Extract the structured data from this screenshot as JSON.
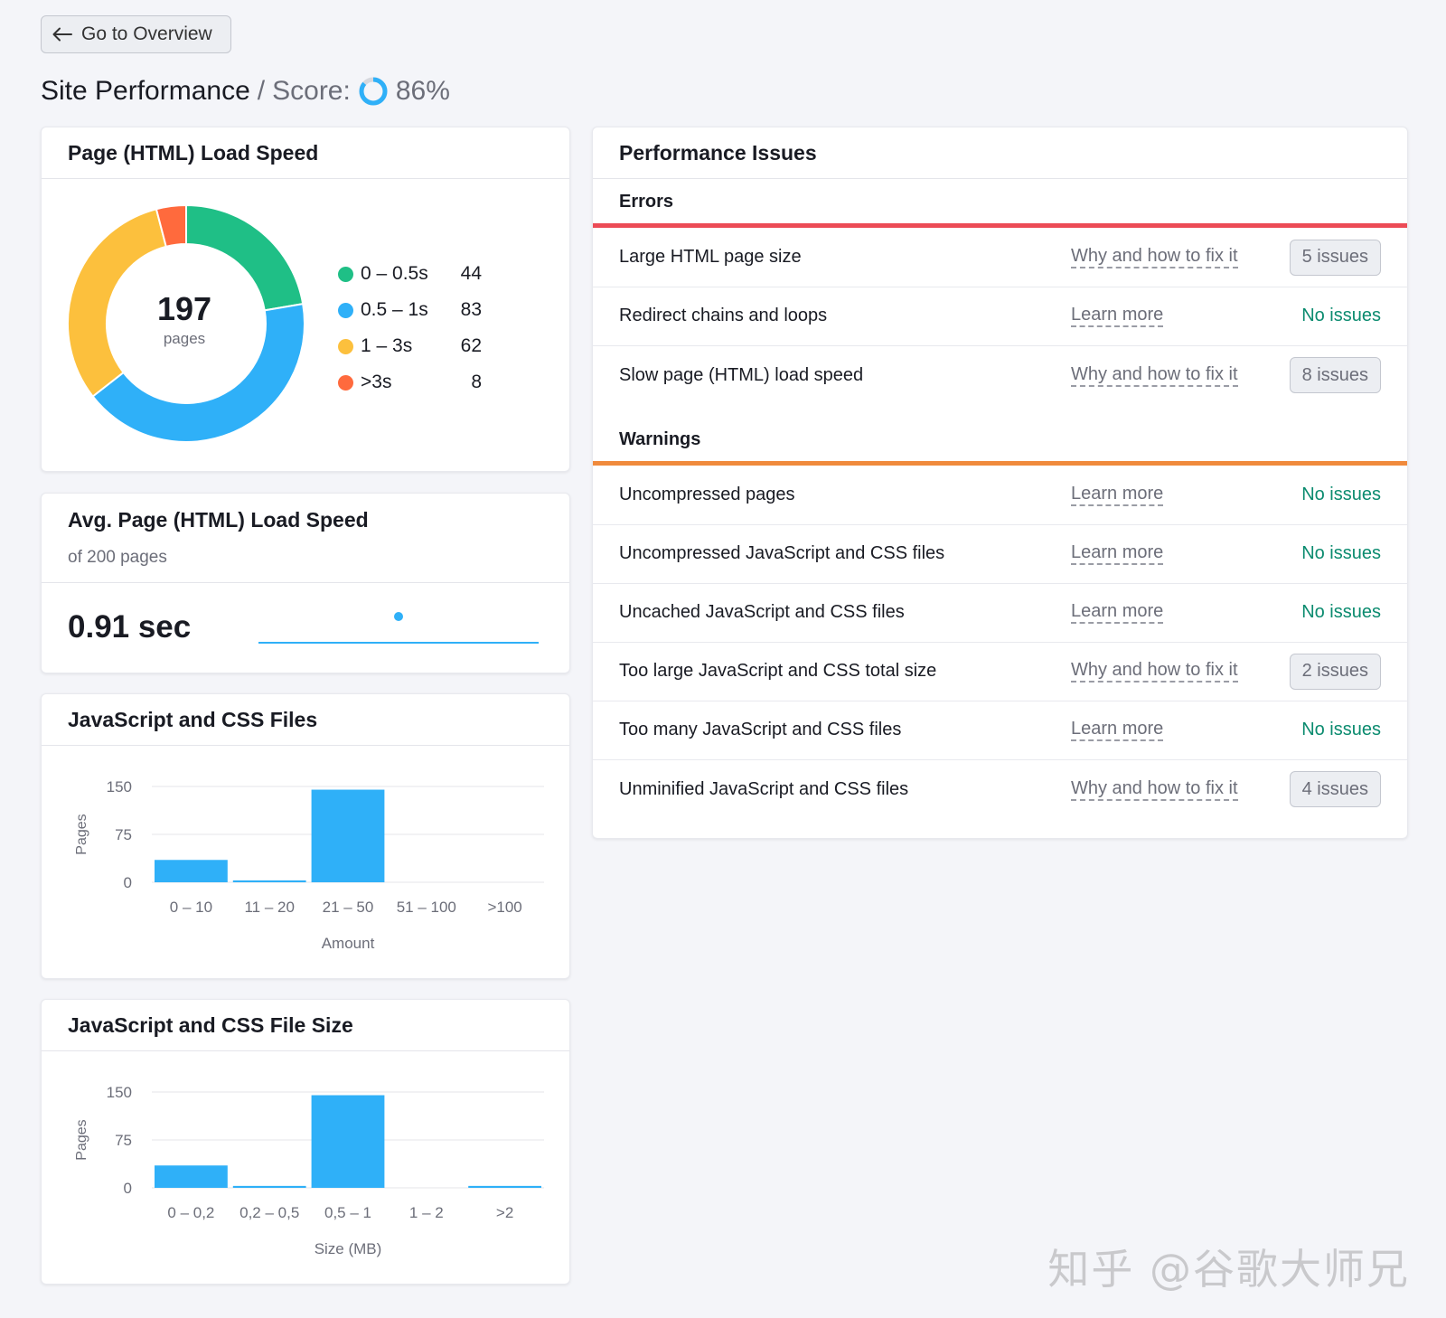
{
  "nav": {
    "back_label": "Go to Overview"
  },
  "header": {
    "title": "Site Performance",
    "separator": "/",
    "score_label": "Score:",
    "score_value": "86%",
    "score_fraction": 0.86
  },
  "load_speed": {
    "title": "Page (HTML) Load Speed",
    "total": "197",
    "total_label": "pages",
    "legend": [
      {
        "label": "0 – 0.5s",
        "count": "44",
        "color": "#1fbf86"
      },
      {
        "label": "0.5 – 1s",
        "count": "83",
        "color": "#2fb0f8"
      },
      {
        "label": "1 – 3s",
        "count": "62",
        "color": "#fcc03d"
      },
      {
        "label": ">3s",
        "count": "8",
        "color": "#ff6a3d"
      }
    ]
  },
  "avg_speed": {
    "title": "Avg. Page (HTML) Load Speed",
    "subtitle": "of 200 pages",
    "value": "0.91 sec"
  },
  "charts": {
    "files": {
      "title": "JavaScript and CSS Files",
      "accent": "#2fb0f8"
    },
    "size": {
      "title": "JavaScript and CSS File Size",
      "accent": "#2fb0f8"
    }
  },
  "chart_data": [
    {
      "type": "bar",
      "title": "JavaScript and CSS Files",
      "categories": [
        "0 – 10",
        "11 – 20",
        "21 – 50",
        "51 – 100",
        ">100"
      ],
      "values": [
        35,
        3,
        145,
        0,
        0
      ],
      "xlabel": "Amount",
      "ylabel": "Pages",
      "yticks": [
        "150",
        "75",
        "0"
      ],
      "ylim": [
        0,
        150
      ],
      "grid": true
    },
    {
      "type": "bar",
      "title": "JavaScript and CSS File Size",
      "categories": [
        "0 – 0,2",
        "0,2 – 0,5",
        "0,5 – 1",
        "1 – 2",
        ">2"
      ],
      "values": [
        35,
        3,
        145,
        0,
        3
      ],
      "xlabel": "Size (MB)",
      "ylabel": "Pages",
      "yticks": [
        "150",
        "75",
        "0"
      ],
      "ylim": [
        0,
        150
      ],
      "grid": true
    }
  ],
  "issues": {
    "title": "Performance Issues",
    "errors": {
      "label": "Errors",
      "color": "#ec4b56",
      "rows": [
        {
          "name": "Large HTML page size",
          "link": "Why and how to fix it",
          "status": "5 issues",
          "has_issues": true
        },
        {
          "name": "Redirect chains and loops",
          "link": "Learn more",
          "status": "No issues",
          "has_issues": false
        },
        {
          "name": "Slow page (HTML) load speed",
          "link": "Why and how to fix it",
          "status": "8 issues",
          "has_issues": true
        }
      ]
    },
    "warnings": {
      "label": "Warnings",
      "color": "#f08a3c",
      "rows": [
        {
          "name": "Uncompressed pages",
          "link": "Learn more",
          "status": "No issues",
          "has_issues": false
        },
        {
          "name": "Uncompressed JavaScript and CSS files",
          "link": "Learn more",
          "status": "No issues",
          "has_issues": false
        },
        {
          "name": "Uncached JavaScript and CSS files",
          "link": "Learn more",
          "status": "No issues",
          "has_issues": false
        },
        {
          "name": "Too large JavaScript and CSS total size",
          "link": "Why and how to fix it",
          "status": "2 issues",
          "has_issues": true
        },
        {
          "name": "Too many JavaScript and CSS files",
          "link": "Learn more",
          "status": "No issues",
          "has_issues": false
        },
        {
          "name": "Unminified JavaScript and CSS files",
          "link": "Why and how to fix it",
          "status": "4 issues",
          "has_issues": true
        }
      ]
    }
  },
  "watermark": "知乎 @谷歌大师兄"
}
